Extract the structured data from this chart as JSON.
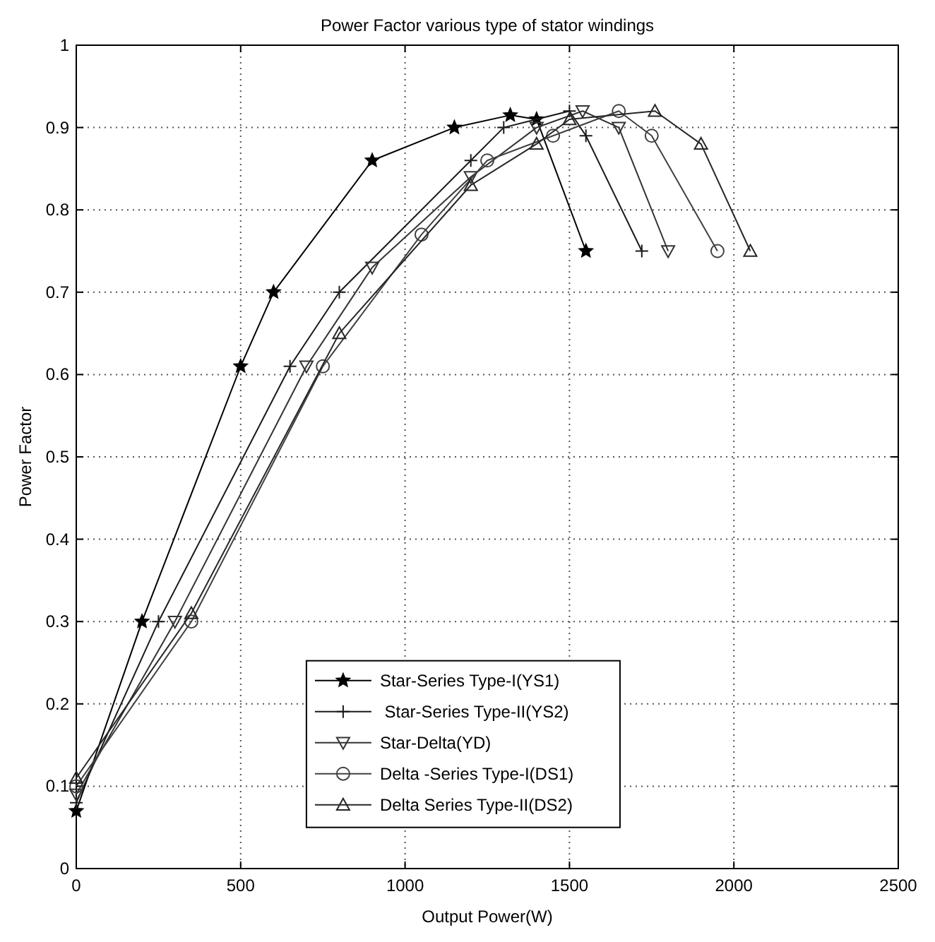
{
  "chart_data": {
    "type": "line",
    "title": "Power Factor various type of stator windings",
    "xlabel": "Output Power(W)",
    "ylabel": "Power Factor",
    "xlim": [
      0,
      2500
    ],
    "xticks": [
      0,
      500,
      1000,
      1500,
      2000,
      2500
    ],
    "ylim": [
      0,
      1
    ],
    "yticks": [
      0,
      0.1,
      0.2,
      0.3,
      0.4,
      0.5,
      0.6,
      0.7,
      0.8,
      0.9,
      1
    ],
    "grid": true,
    "legend": "bottom",
    "line_style": "solid",
    "series": [
      {
        "name": "Star-Series Type-I(YS1)",
        "color": "#000000",
        "marker": "star",
        "x": [
          0,
          200,
          500,
          600,
          900,
          1150,
          1320,
          1400,
          1550
        ],
        "values": [
          0.07,
          0.3,
          0.61,
          0.7,
          0.86,
          0.9,
          0.915,
          0.91,
          0.75
        ]
      },
      {
        "name": " Star-Series Type-II(YS2)",
        "color": "#1a1a1a",
        "marker": "plus",
        "x": [
          0,
          250,
          650,
          800,
          1200,
          1300,
          1500,
          1550,
          1720
        ],
        "values": [
          0.08,
          0.3,
          0.61,
          0.7,
          0.86,
          0.9,
          0.92,
          0.89,
          0.75
        ]
      },
      {
        "name": "Star-Delta(YD)",
        "color": "#333333",
        "marker": "triangle-down",
        "x": [
          0,
          300,
          700,
          900,
          1200,
          1400,
          1540,
          1650,
          1800
        ],
        "values": [
          0.09,
          0.3,
          0.61,
          0.73,
          0.84,
          0.9,
          0.92,
          0.9,
          0.75
        ]
      },
      {
        "name": "Delta -Series Type-I(DS1)",
        "color": "#404040",
        "marker": "circle",
        "x": [
          0,
          350,
          750,
          1050,
          1250,
          1450,
          1650,
          1750,
          1950
        ],
        "values": [
          0.1,
          0.3,
          0.61,
          0.77,
          0.86,
          0.89,
          0.92,
          0.89,
          0.75
        ]
      },
      {
        "name": "Delta Series Type-II(DS2)",
        "color": "#262626",
        "marker": "triangle",
        "x": [
          0,
          350,
          800,
          1200,
          1400,
          1500,
          1760,
          1900,
          2050
        ],
        "values": [
          0.11,
          0.31,
          0.65,
          0.83,
          0.88,
          0.91,
          0.92,
          0.88,
          0.75
        ]
      }
    ]
  }
}
